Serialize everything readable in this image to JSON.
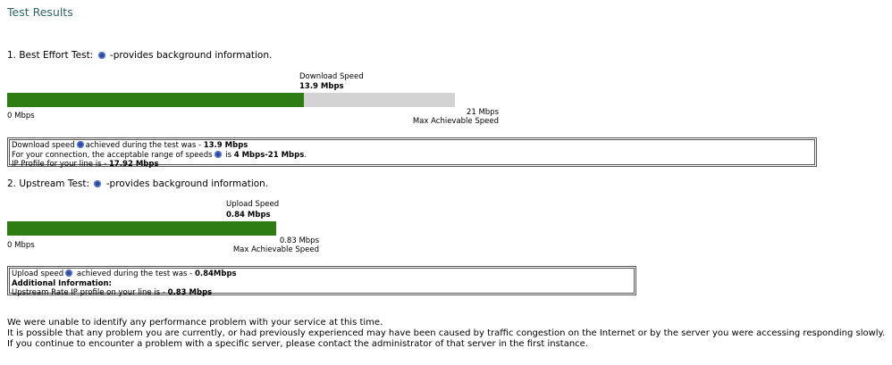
{
  "header": {
    "title": "Test Results"
  },
  "tests": [
    {
      "heading": "1. Best Effort Test:",
      "info": "-provides background information.",
      "speed_label": "Download  Speed",
      "speed": {
        "value": 13.9,
        "label": "13.9 Mbps"
      },
      "min_label": "0 Mbps",
      "max": {
        "value": 21,
        "label": "21 Mbps"
      },
      "max_caption": "Max Achievable Speed",
      "details": [
        {
          "text": "Download speed",
          "text2": "achieved during the test was - ",
          "strong": "13.9 Mbps"
        },
        {
          "text": "For your connection, the acceptable range of speeds",
          "text2": " is ",
          "strong": "4 Mbps-21 Mbps",
          "after": "."
        },
        {
          "text": "IP Profile for your line is - ",
          "strong": "17.92 Mbps"
        }
      ]
    },
    {
      "heading": "2. Upstream Test:",
      "info": "-provides background information.",
      "speed_label": "Upload Speed",
      "speed": {
        "value": 0.84,
        "label": "0.84 Mbps"
      },
      "min_label": "0 Mbps",
      "max": {
        "value": 0.83,
        "label": "0.83 Mbps"
      },
      "max_caption": "Max Achievable Speed",
      "details": [
        {
          "text": "Upload speed",
          "text2": " achieved during the test was - ",
          "strong": "0.84Mbps"
        },
        {
          "strong": "Additional Information:"
        },
        {
          "text": "Upstream Rate IP profile on your line is - ",
          "strong": "0.83 Mbps"
        }
      ]
    }
  ],
  "footer": [
    "We were unable to identify any performance problem with your service at this time.",
    "It is possible that any problem you are currently, or had previously experienced may have been caused by traffic congestion on the Internet or by the server you were accessing responding slowly.",
    "If you continue to encounter a problem with a specific server, please contact the administrator of that server in the first instance."
  ]
}
